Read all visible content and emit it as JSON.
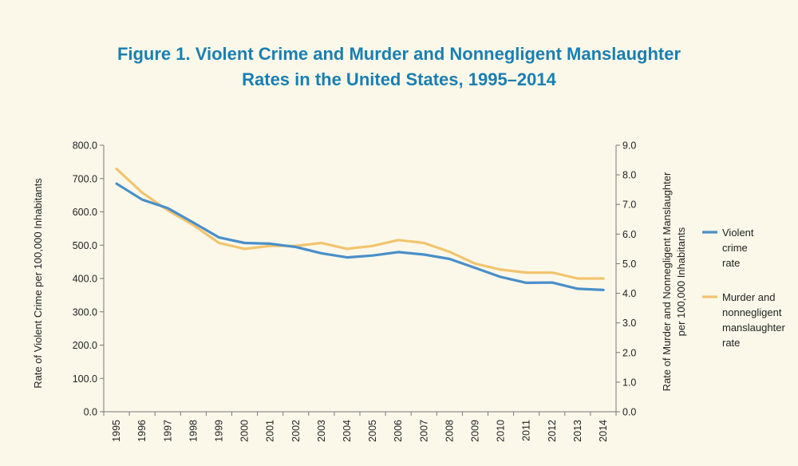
{
  "title_line1": "Figure 1. Violent Crime and Murder and Nonnegligent Manslaughter",
  "title_line2": "Rates in the United States, 1995–2014",
  "chart_data": {
    "type": "line",
    "x": [
      "1995",
      "1996",
      "1997",
      "1998",
      "1999",
      "2000",
      "2001",
      "2002",
      "2003",
      "2004",
      "2005",
      "2006",
      "2007",
      "2008",
      "2009",
      "2010",
      "2011",
      "2012",
      "2013",
      "2014"
    ],
    "series": [
      {
        "name": "Violent crime rate",
        "legend_lines": [
          "Violent",
          "crime",
          "rate"
        ],
        "axis": "left",
        "color": "#4a8fc9",
        "values": [
          684.5,
          636.6,
          611.0,
          567.6,
          523.0,
          506.5,
          504.5,
          494.4,
          475.8,
          463.2,
          469.0,
          479.3,
          471.8,
          458.6,
          431.9,
          404.5,
          387.1,
          387.8,
          369.1,
          365.5
        ]
      },
      {
        "name": "Murder and nonnegligent manslaughter rate",
        "legend_lines": [
          "Murder and",
          "nonnegligent",
          "manslaughter",
          "rate"
        ],
        "axis": "right",
        "color": "#f2c46e",
        "values": [
          8.2,
          7.4,
          6.8,
          6.3,
          5.7,
          5.5,
          5.6,
          5.6,
          5.7,
          5.5,
          5.6,
          5.8,
          5.7,
          5.4,
          5.0,
          4.8,
          4.7,
          4.7,
          4.5,
          4.5
        ]
      }
    ],
    "ylabel_left": "Rate of Violent Crime per 100,000 Inhabitants",
    "ylabel_right_lines": [
      "Rate of Murder and Nonnegligent Manslaughter",
      "per 100,000 Inhabitants"
    ],
    "ylim_left": [
      0,
      800
    ],
    "ylim_right": [
      0,
      9
    ],
    "yticks_left": [
      "0.0",
      "100.0",
      "200.0",
      "300.0",
      "400.0",
      "500.0",
      "600.0",
      "700.0",
      "800.0"
    ],
    "yticks_right": [
      "0.0",
      "1.0",
      "2.0",
      "3.0",
      "4.0",
      "5.0",
      "6.0",
      "7.0",
      "8.0",
      "9.0"
    ],
    "grid": false,
    "legend_position": "right"
  }
}
